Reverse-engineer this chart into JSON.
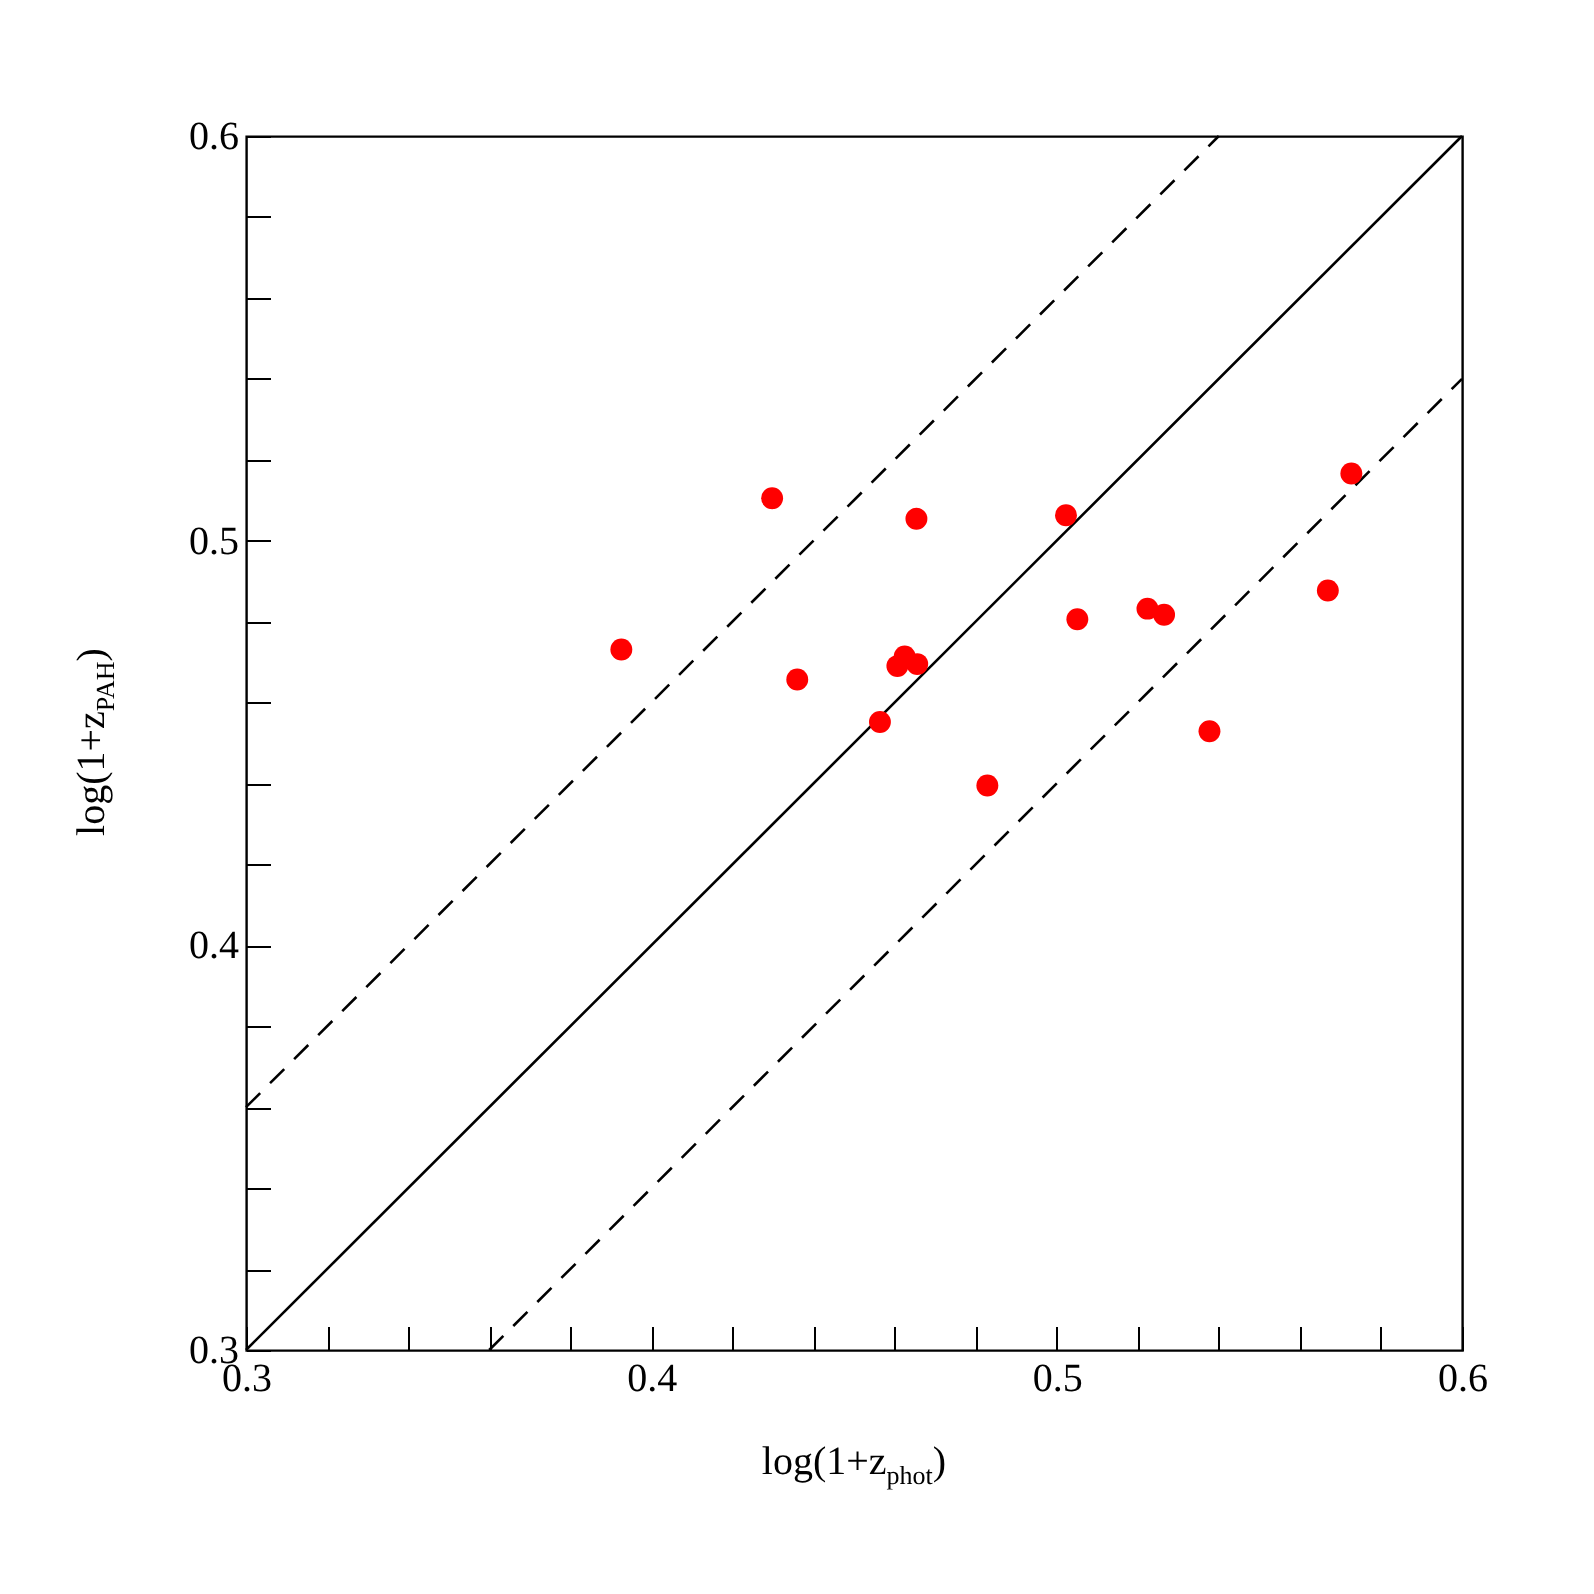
{
  "chart_data": {
    "type": "scatter",
    "xlabel": "log(1+z$_{phot}$)",
    "ylabel": "log(1+z$_{PAH}$)",
    "xlim": [
      0.3,
      0.6
    ],
    "ylim": [
      0.3,
      0.6
    ],
    "xticks": [
      0.3,
      {
        "value": 0.32,
        "label": null
      },
      {
        "value": 0.34,
        "label": null
      },
      {
        "value": 0.36,
        "label": null
      },
      {
        "value": 0.38,
        "label": null
      },
      0.4,
      {
        "value": 0.42,
        "label": null
      },
      {
        "value": 0.44,
        "label": null
      },
      {
        "value": 0.46,
        "label": null
      },
      {
        "value": 0.48,
        "label": null
      },
      0.5,
      {
        "value": 0.52,
        "label": null
      },
      {
        "value": 0.54,
        "label": null
      },
      {
        "value": 0.56,
        "label": null
      },
      {
        "value": 0.58,
        "label": null
      },
      0.6
    ],
    "yticks": [
      0.3,
      {
        "value": 0.32,
        "label": null
      },
      {
        "value": 0.34,
        "label": null
      },
      {
        "value": 0.36,
        "label": null
      },
      {
        "value": 0.38,
        "label": null
      },
      0.4,
      {
        "value": 0.42,
        "label": null
      },
      {
        "value": 0.44,
        "label": null
      },
      {
        "value": 0.46,
        "label": null
      },
      {
        "value": 0.48,
        "label": null
      },
      0.5,
      {
        "value": 0.52,
        "label": null
      },
      {
        "value": 0.54,
        "label": null
      },
      {
        "value": 0.56,
        "label": null
      },
      {
        "value": 0.58,
        "label": null
      },
      0.6
    ],
    "marker": "circle",
    "series": [
      {
        "color": "#ff0000",
        "x": [
          0.3926,
          0.4298,
          0.436,
          0.4564,
          0.4607,
          0.4625,
          0.4656,
          0.4654,
          0.4829,
          0.5023,
          0.5051,
          0.5224,
          0.5265,
          0.5377,
          0.5669,
          0.5727
        ],
        "values": [
          0.4731,
          0.5105,
          0.4657,
          0.4552,
          0.469,
          0.4714,
          0.4695,
          0.5054,
          0.4395,
          0.5063,
          0.4806,
          0.4832,
          0.4817,
          0.4529,
          0.4877,
          0.5166
        ]
      },
      {
        "type": "line",
        "color": "#000000",
        "marker": "none",
        "line_style": "solid",
        "x": [
          0.3,
          0.6
        ],
        "values": [
          0.3,
          0.6
        ]
      },
      {
        "type": "line",
        "color": "#000000",
        "marker": "none",
        "line_style": "dashed",
        "x": [
          0.3,
          0.54
        ],
        "values": [
          0.36,
          0.6
        ]
      },
      {
        "type": "line",
        "color": "#000000",
        "marker": "none",
        "line_style": "dashed",
        "x": [
          0.36,
          0.6
        ],
        "values": [
          0.3,
          0.54
        ]
      }
    ]
  }
}
